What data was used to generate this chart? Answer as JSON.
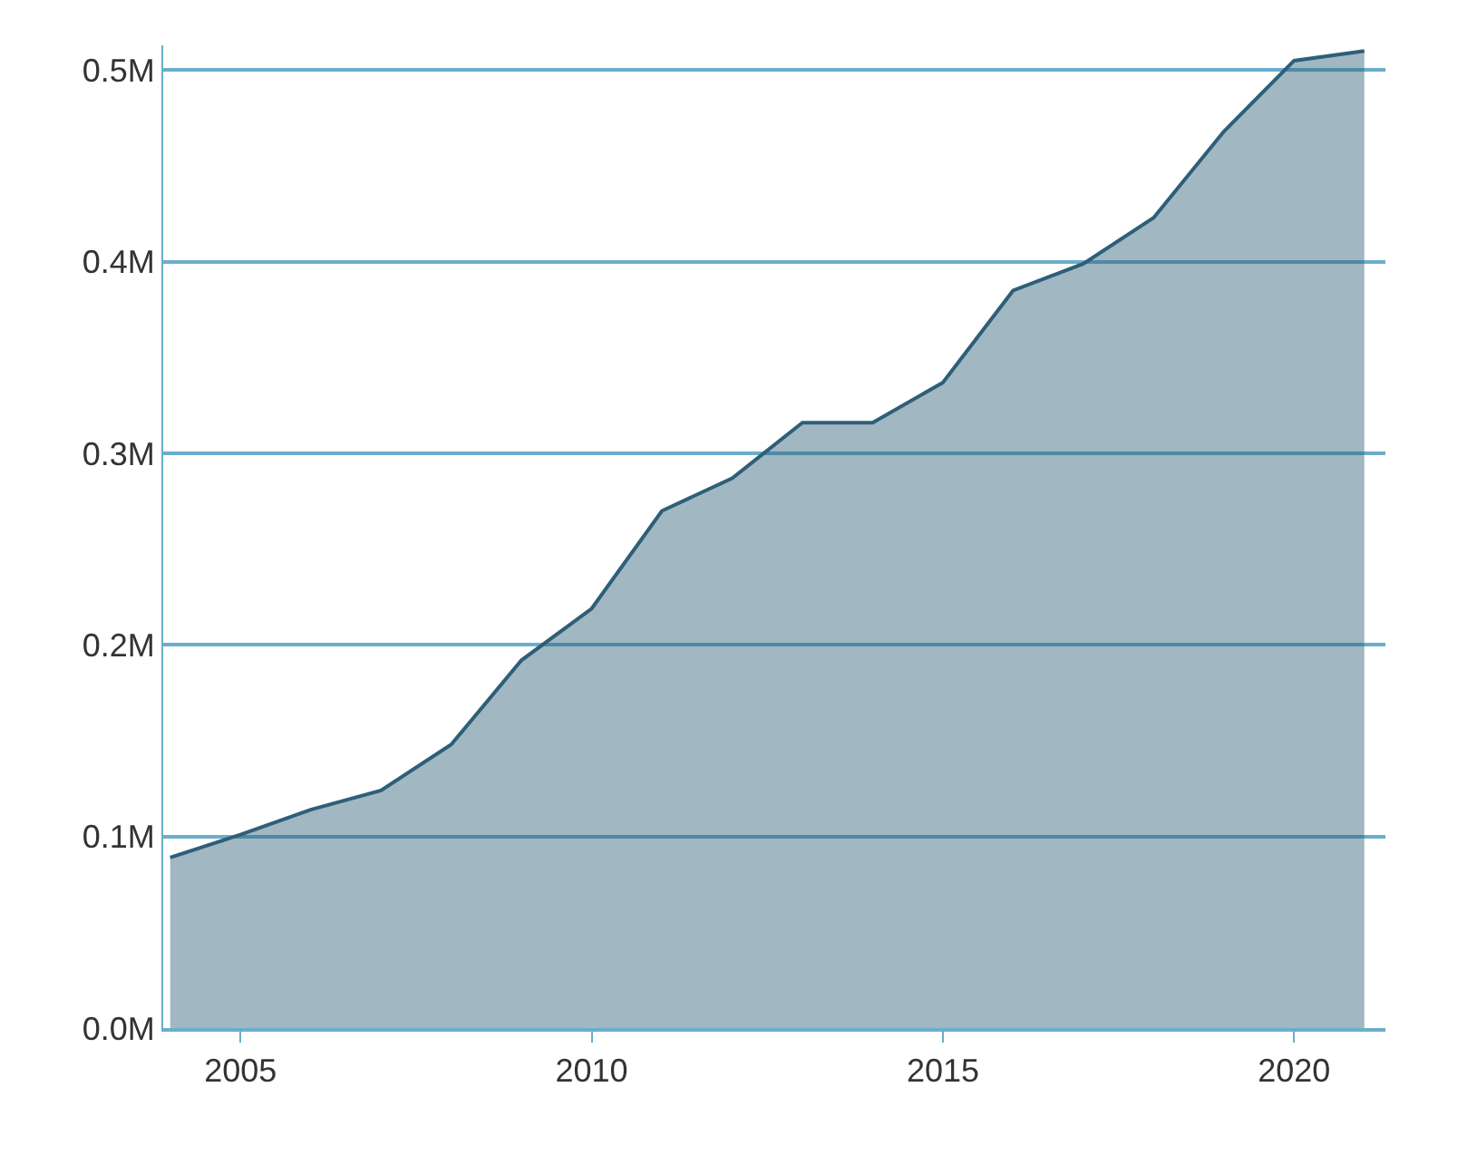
{
  "chart_data": {
    "type": "area",
    "x": [
      2004,
      2005,
      2006,
      2007,
      2008,
      2009,
      2010,
      2011,
      2012,
      2013,
      2014,
      2015,
      2016,
      2017,
      2018,
      2019,
      2020,
      2021
    ],
    "series": [
      {
        "color": "#2e5f78",
        "values": [
          89000,
          101000,
          114000,
          124000,
          148000,
          192000,
          219000,
          270000,
          287000,
          316000,
          316000,
          337000,
          385000,
          399000,
          423000,
          468000,
          505000,
          510000
        ]
      }
    ],
    "xlim": [
      2003.9,
      2021.3
    ],
    "xticks": [
      2005,
      2010,
      2015,
      2020
    ],
    "ylim": [
      0,
      513000
    ],
    "yticks": [
      {
        "value": 0,
        "label": "0.0M"
      },
      {
        "value": 100000,
        "label": "0.1M"
      },
      {
        "value": 200000,
        "label": "0.2M"
      },
      {
        "value": 300000,
        "label": "0.3M"
      },
      {
        "value": 400000,
        "label": "0.4M"
      },
      {
        "value": 500000,
        "label": "0.5M"
      }
    ],
    "grid": "y"
  }
}
